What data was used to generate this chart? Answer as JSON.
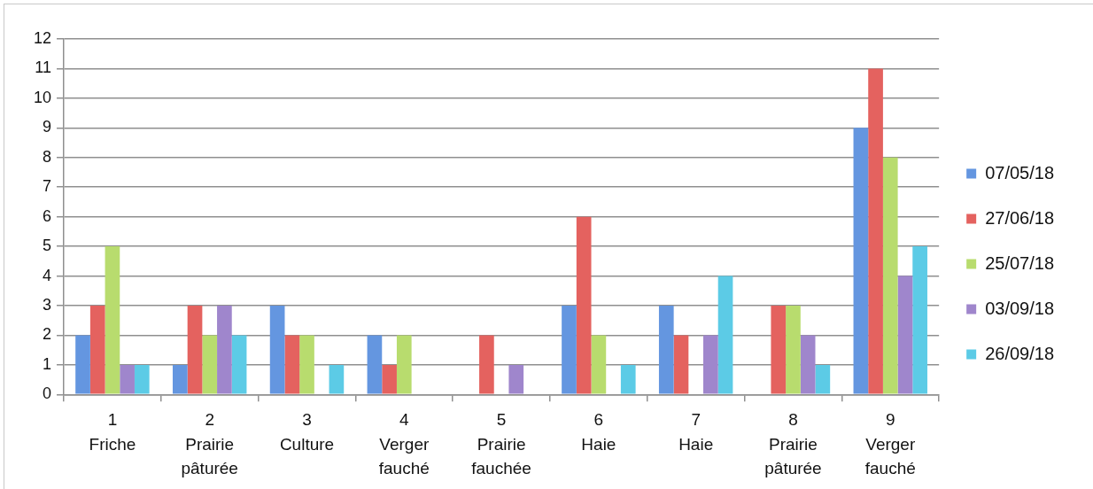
{
  "chart_data": {
    "type": "bar",
    "categories": [
      "1\nFriche",
      "2\nPrairie pâturée",
      "3\nCulture",
      "4\nVerger fauché",
      "5\nPrairie fauchée",
      "6\nHaie",
      "7\nHaie",
      "8\nPrairie pâturée",
      "9\nVerger fauché"
    ],
    "series": [
      {
        "name": "07/05/18",
        "color": "#6496e0",
        "values": [
          2,
          1,
          3,
          2,
          0,
          3,
          3,
          0,
          9
        ]
      },
      {
        "name": "27/06/18",
        "color": "#e4625f",
        "values": [
          3,
          3,
          2,
          1,
          2,
          6,
          2,
          3,
          11
        ]
      },
      {
        "name": "25/07/18",
        "color": "#b8dc6e",
        "values": [
          5,
          2,
          2,
          2,
          0,
          2,
          0,
          3,
          8
        ]
      },
      {
        "name": "03/09/18",
        "color": "#9f86cc",
        "values": [
          1,
          3,
          0,
          0,
          1,
          0,
          2,
          2,
          4
        ]
      },
      {
        "name": "26/09/18",
        "color": "#5ccbe6",
        "values": [
          1,
          2,
          1,
          0,
          0,
          1,
          4,
          1,
          5
        ]
      }
    ],
    "ylim": [
      0,
      12
    ],
    "yticks": [
      0,
      1,
      2,
      3,
      4,
      5,
      6,
      7,
      8,
      9,
      10,
      11,
      12
    ],
    "grid": "y",
    "legend": "right"
  }
}
